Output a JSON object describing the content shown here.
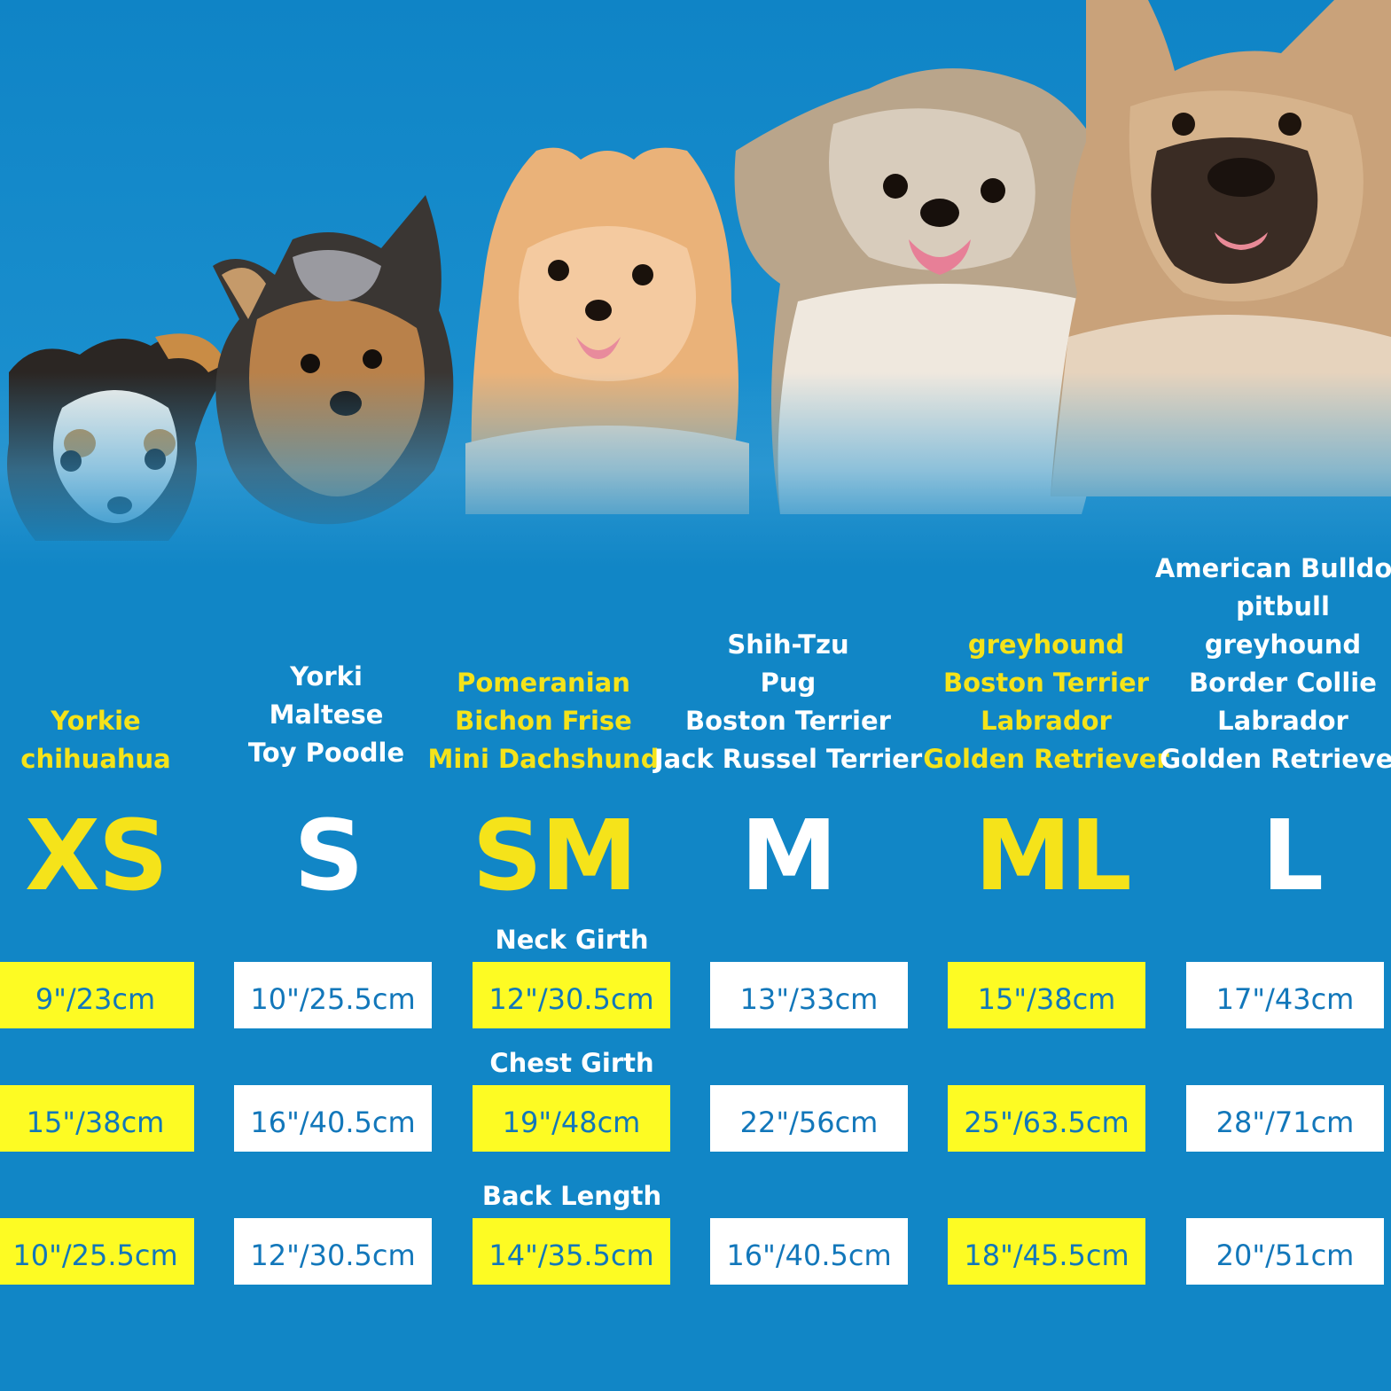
{
  "background_color": "#1186c6",
  "accent_yellow": "#f5e31a",
  "cell_yellow": "#fdfb23",
  "cell_text_color": "#1277ba",
  "dogs": [
    {
      "name": "chihuahua-puppy-photo"
    },
    {
      "name": "yorkshire-terrier-photo"
    },
    {
      "name": "pomeranian-photo"
    },
    {
      "name": "shih-tzu-photo"
    },
    {
      "name": "french-bulldog-photo"
    }
  ],
  "sizes": [
    {
      "label": "XS",
      "color": "yellow",
      "breeds": [
        "Yorkie",
        "chihuahua"
      ]
    },
    {
      "label": "S",
      "color": "white",
      "breeds": [
        "Yorki",
        "Maltese",
        "Toy Poodle"
      ]
    },
    {
      "label": "SM",
      "color": "yellow",
      "breeds": [
        "Pomeranian",
        "Bichon Frise",
        "Mini Dachshund"
      ]
    },
    {
      "label": "M",
      "color": "white",
      "breeds": [
        "Shih-Tzu",
        "Pug",
        "Boston Terrier",
        "Jack Russel Terrier"
      ]
    },
    {
      "label": "ML",
      "color": "yellow",
      "breeds": [
        "greyhound",
        "Boston Terrier",
        "Labrador",
        "Golden Retriever"
      ]
    },
    {
      "label": "L",
      "color": "white",
      "breeds": [
        "American Bulldog",
        "pitbull",
        "greyhound",
        "Border Collie",
        "Labrador",
        "Golden Retriever"
      ]
    }
  ],
  "measurements": [
    {
      "title": "Neck Girth",
      "values": [
        "9\"/23cm",
        "10\"/25.5cm",
        "12\"/30.5cm",
        "13\"/33cm",
        "15\"/38cm",
        "17\"/43cm"
      ]
    },
    {
      "title": "Chest Girth",
      "values": [
        "15\"/38cm",
        "16\"/40.5cm",
        "19\"/48cm",
        "22\"/56cm",
        "25\"/63.5cm",
        "28\"/71cm"
      ]
    },
    {
      "title": "Back Length",
      "values": [
        "10\"/25.5cm",
        "12\"/30.5cm",
        "14\"/35.5cm",
        "16\"/40.5cm",
        "18\"/45.5cm",
        "20\"/51cm"
      ]
    }
  ]
}
